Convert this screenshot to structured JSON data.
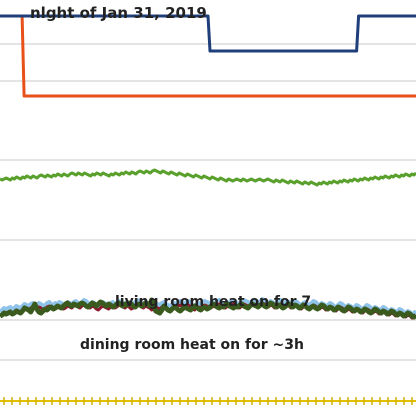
{
  "chart_data": {
    "type": "line",
    "title": "nlght of Jan 31, 2019",
    "xlabel": "",
    "ylabel": "",
    "grid": true,
    "legend": "none",
    "annotations": [
      {
        "id": "living",
        "text": "living room heat on for 7"
      },
      {
        "id": "dining",
        "text": "dining room heat  on for ~3h"
      }
    ],
    "series": [
      {
        "color": "#8fc3ea",
        "values": [
          104,
          106,
          108,
          107,
          108,
          109,
          107,
          108,
          110,
          109,
          108,
          110,
          112,
          111,
          110,
          112,
          113,
          112,
          111,
          113,
          112,
          110,
          111,
          113,
          114,
          112,
          111,
          113,
          112,
          114,
          113,
          111,
          112,
          114,
          113,
          112,
          114,
          115,
          113,
          112,
          114,
          116,
          115,
          113,
          112,
          114,
          113,
          111,
          110,
          112,
          114,
          113,
          112,
          111,
          113,
          114,
          112,
          113,
          115,
          114,
          113,
          112,
          114,
          113,
          111,
          112,
          114,
          116,
          115,
          113,
          112,
          114,
          113,
          112,
          110,
          111,
          113,
          112,
          111,
          113,
          114,
          112,
          111,
          110,
          112,
          113,
          112,
          114,
          115,
          113,
          112,
          114,
          115,
          113,
          111,
          110,
          112,
          113,
          112,
          114,
          115,
          114,
          113,
          112,
          114,
          113,
          115,
          116,
          114,
          113,
          112,
          114,
          113,
          115,
          116,
          114,
          113,
          112,
          114,
          116,
          115,
          114,
          113,
          115,
          116,
          114,
          113,
          115,
          117,
          116,
          114,
          113,
          115,
          114,
          112,
          113,
          115,
          116,
          114,
          113,
          115,
          114,
          112,
          113,
          115,
          114,
          112,
          111,
          113,
          114,
          112,
          111,
          113,
          115,
          114,
          112,
          111,
          113,
          112,
          110,
          111,
          113,
          112,
          110,
          109,
          111,
          113,
          112,
          110,
          109,
          111,
          110,
          108,
          109,
          111,
          110,
          108,
          107,
          109,
          111,
          110,
          108,
          107,
          109,
          108,
          106,
          107,
          109,
          108,
          106,
          105,
          107,
          106,
          104,
          105,
          107,
          106,
          104,
          103,
          105,
          104,
          102,
          103,
          105
        ]
      },
      {
        "color": "#8b1a2e",
        "values": [
          100,
          102,
          104,
          103,
          104,
          105,
          103,
          104,
          106,
          105,
          104,
          106,
          108,
          107,
          106,
          108,
          109,
          108,
          107,
          109,
          108,
          106,
          107,
          109,
          110,
          108,
          107,
          109,
          108,
          110,
          109,
          107,
          108,
          110,
          109,
          108,
          110,
          111,
          109,
          108,
          110,
          112,
          111,
          109,
          108,
          110,
          109,
          107,
          106,
          108,
          110,
          109,
          108,
          107,
          109,
          110,
          108,
          109,
          111,
          110,
          109,
          108,
          110,
          109,
          107,
          108,
          110,
          112,
          111,
          109,
          108,
          110,
          109,
          108,
          106,
          107,
          109,
          108,
          107,
          109,
          110,
          108,
          107,
          106,
          108,
          109,
          108,
          110,
          111,
          109,
          108,
          110,
          111,
          109,
          107,
          106,
          108,
          109,
          108,
          110,
          111,
          110,
          109,
          108,
          110,
          109,
          111,
          112,
          110,
          109,
          108,
          110,
          109,
          111,
          112,
          110,
          109,
          108,
          110,
          112,
          111,
          110,
          109,
          111,
          112,
          110,
          109,
          111,
          113,
          112,
          110,
          109,
          111,
          110,
          108,
          109,
          111,
          112,
          110,
          109,
          111,
          110,
          108,
          109,
          111,
          110,
          108,
          107,
          109,
          110,
          108,
          107,
          109,
          111,
          110,
          108,
          107,
          109,
          108,
          106,
          107,
          109,
          108,
          106,
          105,
          107,
          109,
          108,
          106,
          105,
          107,
          106,
          104,
          105,
          107,
          106,
          104,
          103,
          105,
          107,
          106,
          104,
          103,
          105,
          104,
          102,
          103,
          105,
          104,
          102,
          101,
          103,
          102,
          100,
          101,
          103,
          102,
          100,
          99,
          101,
          100,
          98,
          99,
          101
        ]
      },
      {
        "color": "#3a5a1e",
        "values": [
          100,
          101,
          103,
          102,
          103,
          104,
          102,
          103,
          105,
          104,
          103,
          105,
          108,
          107,
          106,
          104,
          108,
          112,
          107,
          104,
          103,
          105,
          107,
          106,
          108,
          109,
          107,
          108,
          110,
          109,
          108,
          110,
          112,
          113,
          111,
          110,
          112,
          111,
          110,
          112,
          113,
          112,
          110,
          109,
          111,
          113,
          112,
          110,
          112,
          114,
          113,
          111,
          110,
          112,
          111,
          109,
          110,
          112,
          113,
          111,
          110,
          112,
          111,
          113,
          112,
          110,
          109,
          111,
          112,
          110,
          111,
          113,
          112,
          110,
          116,
          112,
          105,
          104,
          103,
          106,
          110,
          108,
          106,
          105,
          107,
          109,
          108,
          106,
          105,
          107,
          109,
          108,
          107,
          106,
          108,
          110,
          109,
          107,
          106,
          108,
          109,
          107,
          108,
          110,
          112,
          111,
          109,
          108,
          110,
          109,
          111,
          112,
          110,
          109,
          108,
          110,
          109,
          111,
          112,
          110,
          109,
          108,
          110,
          112,
          111,
          110,
          109,
          111,
          112,
          110,
          109,
          111,
          113,
          112,
          110,
          109,
          111,
          110,
          108,
          109,
          111,
          112,
          110,
          109,
          111,
          110,
          108,
          109,
          111,
          110,
          108,
          107,
          109,
          110,
          108,
          107,
          109,
          111,
          110,
          108,
          107,
          109,
          108,
          106,
          107,
          109,
          108,
          106,
          105,
          107,
          109,
          108,
          106,
          105,
          107,
          106,
          104,
          105,
          107,
          106,
          104,
          103,
          105,
          107,
          106,
          104,
          103,
          105,
          104,
          102,
          103,
          105,
          104,
          102,
          101,
          103,
          102,
          100,
          101,
          103,
          102,
          100,
          99,
          101
        ]
      },
      {
        "color": "#5aa02c",
        "values": [
          237,
          236,
          237,
          238,
          237,
          236,
          238,
          237,
          239,
          238,
          237,
          239,
          238,
          240,
          239,
          238,
          240,
          239,
          238,
          240,
          241,
          240,
          239,
          241,
          240,
          239,
          241,
          240,
          242,
          241,
          240,
          242,
          241,
          240,
          242,
          243,
          242,
          241,
          243,
          242,
          241,
          243,
          242,
          241,
          240,
          242,
          241,
          243,
          242,
          241,
          243,
          242,
          241,
          240,
          242,
          241,
          243,
          242,
          241,
          243,
          242,
          244,
          243,
          242,
          244,
          243,
          242,
          244,
          245,
          244,
          243,
          245,
          244,
          243,
          245,
          246,
          245,
          244,
          243,
          245,
          244,
          243,
          242,
          244,
          243,
          242,
          241,
          243,
          242,
          241,
          240,
          242,
          241,
          240,
          239,
          241,
          240,
          239,
          238,
          240,
          239,
          238,
          237,
          239,
          238,
          237,
          236,
          238,
          237,
          236,
          235,
          237,
          236,
          235,
          236,
          237,
          236,
          235,
          237,
          236,
          235,
          236,
          237,
          236,
          235,
          236,
          237,
          236,
          235,
          236,
          237,
          236,
          235,
          234,
          236,
          235,
          234,
          236,
          235,
          234,
          233,
          235,
          234,
          233,
          235,
          234,
          233,
          232,
          234,
          233,
          232,
          234,
          233,
          232,
          231,
          233,
          232,
          234,
          233,
          232,
          234,
          233,
          235,
          234,
          233,
          235,
          234,
          236,
          235,
          234,
          236,
          235,
          237,
          236,
          235,
          237,
          236,
          238,
          237,
          236,
          238,
          237,
          239,
          238,
          237,
          239,
          238,
          240,
          239,
          238,
          240,
          239,
          241,
          240,
          239,
          241,
          240,
          242,
          241,
          240,
          242,
          241,
          243
        ]
      },
      {
        "color": "#e8501a",
        "values": [
          400,
          400,
          400,
          400,
          400,
          400,
          400,
          400,
          400,
          400,
          400,
          400,
          320,
          320,
          320,
          320,
          320,
          320,
          320,
          320,
          320,
          320,
          320,
          320,
          320,
          320,
          320,
          320,
          320,
          320,
          320,
          320,
          320,
          320,
          320,
          320,
          320,
          320,
          320,
          320,
          320,
          320,
          320,
          320,
          320,
          320,
          320,
          320,
          320,
          320,
          320,
          320,
          320,
          320,
          320,
          320,
          320,
          320,
          320,
          320,
          320,
          320,
          320,
          320,
          320,
          320,
          320,
          320,
          320,
          320,
          320,
          320,
          320,
          320,
          320,
          320,
          320,
          320,
          320,
          320,
          320,
          320,
          320,
          320,
          320,
          320,
          320,
          320,
          320,
          320,
          320,
          320,
          320,
          320,
          320,
          320,
          320,
          320,
          320,
          320,
          320,
          320,
          320,
          320,
          320,
          320,
          320,
          320,
          320,
          320,
          320,
          320,
          320,
          320,
          320,
          320,
          320,
          320,
          320,
          320,
          320,
          320,
          320,
          320,
          320,
          320,
          320,
          320,
          320,
          320,
          320,
          320,
          320,
          320,
          320,
          320,
          320,
          320,
          320,
          320,
          320,
          320,
          320,
          320,
          320,
          320,
          320,
          320,
          320,
          320,
          320,
          320,
          320,
          320,
          320,
          320,
          320,
          320,
          320,
          320,
          320,
          320,
          320,
          320,
          320,
          320,
          320,
          320,
          320,
          320,
          320,
          320,
          320,
          320,
          320,
          320,
          320,
          320,
          320,
          320,
          320,
          320,
          320,
          320,
          320,
          320,
          320,
          320,
          320,
          320,
          320,
          320,
          320,
          320,
          320,
          320,
          320,
          320,
          320,
          320,
          320,
          320,
          320,
          320,
          320,
          320,
          320,
          320
        ]
      },
      {
        "color": "#1f3f7a",
        "values": [
          400,
          400,
          400,
          400,
          400,
          400,
          400,
          400,
          400,
          400,
          400,
          400,
          400,
          400,
          400,
          400,
          400,
          400,
          400,
          400,
          400,
          400,
          400,
          400,
          400,
          400,
          400,
          400,
          400,
          400,
          400,
          400,
          400,
          400,
          400,
          400,
          400,
          400,
          400,
          400,
          400,
          400,
          400,
          400,
          400,
          400,
          400,
          400,
          400,
          400,
          400,
          400,
          400,
          400,
          400,
          400,
          400,
          400,
          400,
          400,
          400,
          400,
          400,
          400,
          400,
          400,
          400,
          400,
          400,
          400,
          400,
          400,
          400,
          400,
          400,
          400,
          400,
          400,
          400,
          400,
          400,
          400,
          400,
          400,
          400,
          400,
          400,
          400,
          400,
          400,
          400,
          400,
          400,
          400,
          400,
          400,
          400,
          400,
          400,
          400,
          400,
          400,
          400,
          400,
          400,
          400,
          365,
          365,
          365,
          365,
          365,
          365,
          365,
          365,
          365,
          365,
          365,
          365,
          365,
          365,
          365,
          365,
          365,
          365,
          365,
          365,
          365,
          365,
          365,
          365,
          365,
          365,
          365,
          365,
          365,
          365,
          365,
          365,
          365,
          365,
          365,
          365,
          365,
          365,
          365,
          365,
          365,
          365,
          365,
          365,
          365,
          365,
          365,
          365,
          365,
          365,
          365,
          365,
          365,
          365,
          365,
          365,
          365,
          365,
          365,
          365,
          365,
          365,
          365,
          365,
          365,
          365,
          365,
          365,
          365,
          365,
          365,
          365,
          365,
          365,
          365,
          400,
          400,
          400,
          400,
          400,
          400,
          400,
          400,
          400,
          400,
          400,
          400,
          400,
          400,
          400,
          400,
          400,
          400,
          400,
          400,
          400,
          400,
          400,
          400,
          400,
          400,
          400,
          400,
          400,
          400
        ]
      }
    ],
    "ylim": [
      416,
      0
    ]
  }
}
